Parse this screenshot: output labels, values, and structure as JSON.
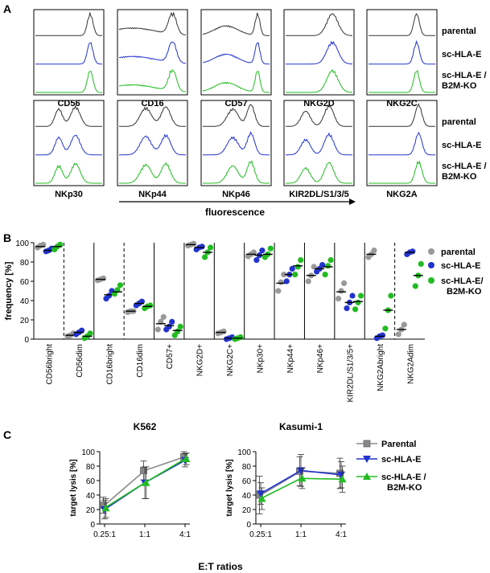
{
  "panel_labels": {
    "a": "A",
    "b": "B",
    "c": "C"
  },
  "colors": {
    "parental": "#333333",
    "sc_hla_e": "#2233cc",
    "ko": "#22bb22",
    "parental_dot": "#999999",
    "parental_square": "#888888"
  },
  "panel_a": {
    "row1_markers": [
      "CD56",
      "CD16",
      "CD57",
      "NKG2D",
      "NKG2C"
    ],
    "row2_markers": [
      "NKp30",
      "NKp44",
      "NKp46",
      "KIR2DL/S1/3/5",
      "NKG2A"
    ],
    "legend": [
      "parental",
      "sc-HLA-E",
      "sc-HLA-E /",
      "B2M-KO"
    ],
    "x_label": "fluorescence"
  },
  "chart_data": [
    {
      "type": "scatter",
      "panel": "B",
      "title": "",
      "ylabel": "frequency [%]",
      "ylim": [
        0,
        100
      ],
      "yticks": [
        "0",
        "20",
        "40",
        "60",
        "80",
        "100"
      ],
      "categories": [
        "CD56bright",
        "CD56dim",
        "CD16bright",
        "CD16dim",
        "CD57+",
        "NKG2D+",
        "NKG2C+",
        "NKp30+",
        "NKp44+",
        "NKp46+",
        "KIR2DL/S1/3/5+",
        "NKG2Abright",
        "NKG2Adim"
      ],
      "legend": [
        "parental",
        "sc-HLA-E",
        "sc-HLA-E/",
        "B2M-KO"
      ],
      "series": [
        {
          "name": "parental",
          "points": [
            [
              95,
              97,
              98
            ],
            [
              3,
              4,
              6
            ],
            [
              61,
              62,
              63
            ],
            [
              28,
              29,
              29
            ],
            [
              10,
              18,
              23
            ],
            [
              97,
              98,
              99
            ],
            [
              6,
              7,
              8
            ],
            [
              86,
              88,
              90
            ],
            [
              50,
              59,
              67
            ],
            [
              60,
              66,
              75
            ],
            [
              42,
              50,
              58
            ],
            [
              85,
              88,
              92
            ],
            [
              5,
              10,
              15
            ]
          ],
          "means": [
            96,
            4,
            62,
            29,
            16,
            98,
            7,
            88,
            58,
            66,
            49,
            88,
            10
          ]
        },
        {
          "name": "sc-HLA-E",
          "points": [
            [
              91,
              92,
              94
            ],
            [
              5,
              7,
              9
            ],
            [
              42,
              45,
              50
            ],
            [
              35,
              37,
              39
            ],
            [
              10,
              13,
              18
            ],
            [
              93,
              95,
              96
            ],
            [
              0,
              1,
              2
            ],
            [
              82,
              87,
              92
            ],
            [
              60,
              67,
              73
            ],
            [
              70,
              73,
              77
            ],
            [
              32,
              38,
              45
            ],
            [
              1,
              3,
              4
            ],
            [
              88,
              90,
              91
            ]
          ],
          "means": [
            92,
            7,
            46,
            37,
            14,
            95,
            1,
            87,
            67,
            73,
            38,
            3,
            90
          ]
        },
        {
          "name": "sc-HLA-E/B2M-KO",
          "points": [
            [
              93,
              96,
              98
            ],
            [
              1,
              3,
              6
            ],
            [
              47,
              51,
              56
            ],
            [
              32,
              34,
              35
            ],
            [
              4,
              8,
              13
            ],
            [
              85,
              90,
              95
            ],
            [
              0,
              1,
              2
            ],
            [
              85,
              88,
              94
            ],
            [
              67,
              75,
              82
            ],
            [
              67,
              76,
              82
            ],
            [
              31,
              38,
              45
            ],
            [
              11,
              30,
              45
            ],
            [
              55,
              66,
              78
            ]
          ],
          "means": [
            96,
            3,
            49,
            34,
            9,
            90,
            1,
            88,
            76,
            75,
            39,
            30,
            66
          ]
        }
      ]
    },
    {
      "type": "line",
      "panel": "C",
      "title": "K562",
      "xlabel": "E:T ratios",
      "ylabel": "target lysis [%]",
      "categories": [
        "0.25:1",
        "1:1",
        "4:1"
      ],
      "ylim": [
        0,
        100
      ],
      "yticks": [
        "0",
        "20",
        "40",
        "60",
        "80",
        "100"
      ],
      "series": [
        {
          "name": "Parental",
          "values": [
            26,
            74,
            93
          ],
          "errors": [
            11,
            13,
            7
          ]
        },
        {
          "name": "sc-HLA-E",
          "values": [
            20,
            57,
            88
          ],
          "errors": [
            13,
            22,
            9
          ]
        },
        {
          "name": "sc-HLA-E / B2M-KO",
          "values": [
            22,
            57,
            90
          ],
          "errors": [
            13,
            22,
            8
          ]
        }
      ]
    },
    {
      "type": "line",
      "panel": "C",
      "title": "Kasumi-1",
      "xlabel": "",
      "ylabel": "target lysis [%]",
      "categories": [
        "0.25:1",
        "1:1",
        "4:1"
      ],
      "ylim": [
        0,
        100
      ],
      "yticks": [
        "0",
        "20",
        "40",
        "60",
        "80",
        "100"
      ],
      "series": [
        {
          "name": "Parental",
          "values": [
            40,
            73,
            70
          ],
          "errors": [
            26,
            20,
            21
          ]
        },
        {
          "name": "sc-HLA-E",
          "values": [
            42,
            74,
            68
          ],
          "errors": [
            15,
            22,
            18
          ]
        },
        {
          "name": "sc-HLA-E / B2M-KO",
          "values": [
            35,
            63,
            62
          ],
          "errors": [
            15,
            14,
            18
          ]
        }
      ]
    }
  ],
  "legend_c": [
    "Parental",
    "sc-HLA-E",
    "sc-HLA-E /",
    "B2M-KO"
  ]
}
